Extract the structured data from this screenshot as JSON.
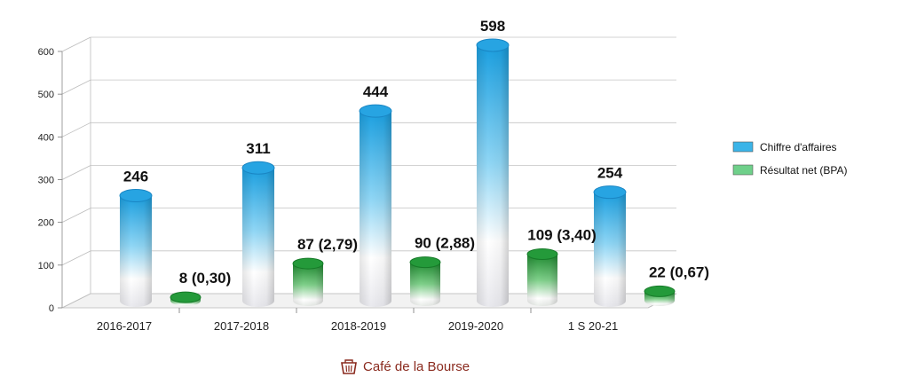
{
  "chart_data": {
    "type": "bar",
    "categories": [
      "2016-2017",
      "2017-2018",
      "2018-2019",
      "2019-2020",
      "1 S 20-21"
    ],
    "ylim": [
      0,
      600
    ],
    "yticks": [
      0,
      100,
      200,
      300,
      400,
      500,
      600
    ],
    "grid": true,
    "legend": "right",
    "series": [
      {
        "name": "Chiffre d'affaires",
        "values": [
          246,
          311,
          444,
          598,
          254
        ],
        "labels": [
          "246",
          "311",
          "444",
          "598",
          "254"
        ],
        "color": "#2aa8e0"
      },
      {
        "name": "Résultat net (BPA)",
        "values": [
          8,
          87,
          90,
          109,
          22
        ],
        "labels": [
          "8 (0,30)",
          "87 (2,79)",
          "90 (2,88)",
          "109 (3,40)",
          "22 (0,67)"
        ],
        "color": "#2e9a40"
      }
    ]
  },
  "brand": {
    "name": "Café de la Bourse",
    "icon": "basket-icon"
  }
}
